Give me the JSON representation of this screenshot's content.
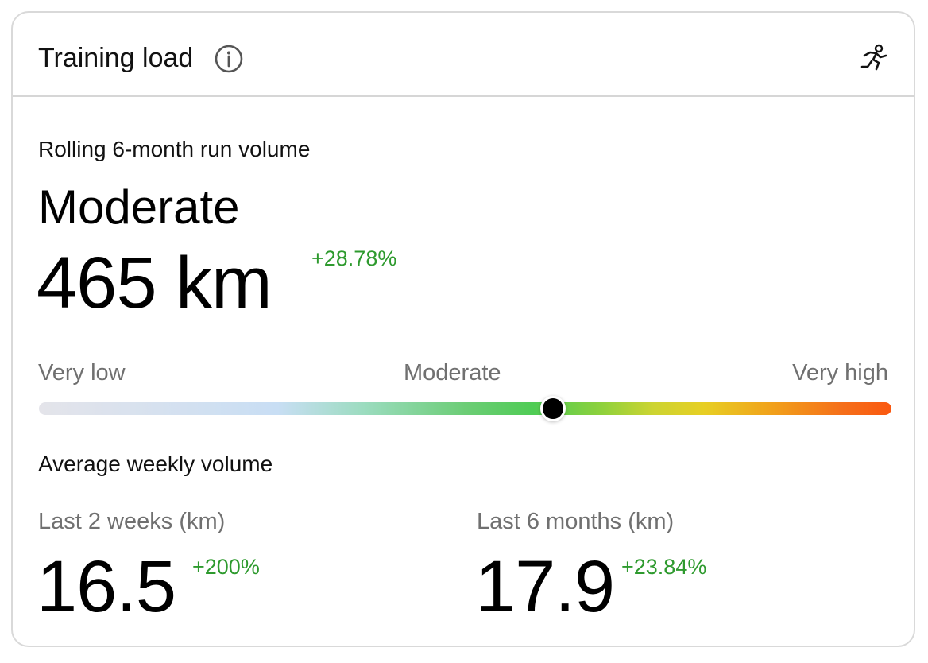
{
  "header": {
    "title": "Training load",
    "info_icon": "info-circle-icon",
    "activity_icon": "running-person-icon"
  },
  "rolling": {
    "label": "Rolling 6-month run volume",
    "level": "Moderate",
    "value": "465 km",
    "change": "+28.78%"
  },
  "scale": {
    "low_label": "Very low",
    "mid_label": "Moderate",
    "high_label": "Very high",
    "position": 0.6
  },
  "weekly": {
    "label": "Average weekly volume",
    "last_2_weeks": {
      "label": "Last 2 weeks (km)",
      "value": "16.5",
      "change": "+200%"
    },
    "last_6_months": {
      "label": "Last 6 months (km)",
      "value": "17.9",
      "change": "+23.84%"
    }
  },
  "colors": {
    "positive_change": "#2e9a2e",
    "muted_text": "#707070",
    "border": "#d9d9d9"
  }
}
